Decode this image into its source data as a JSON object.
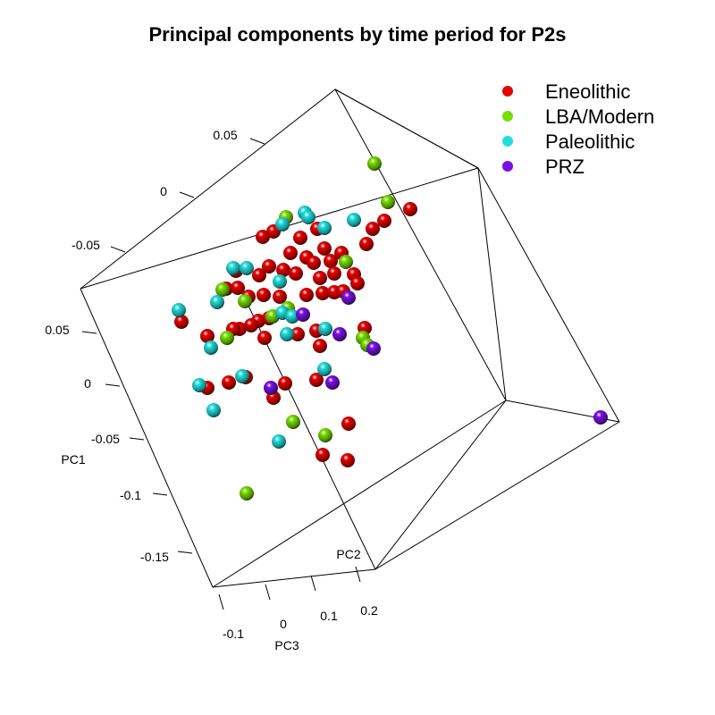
{
  "chart_data": {
    "type": "scatter",
    "title": "Principal components by time period for P2s",
    "axes": {
      "PC1": {
        "label": "PC1",
        "ticks": [
          "0.05",
          "0",
          "-0.05",
          "-0.1",
          "-0.15"
        ],
        "range": [
          -0.17,
          0.07
        ]
      },
      "PC2": {
        "label": "PC2",
        "ticks": [
          "0.05",
          "0",
          "-0.05"
        ]
      },
      "PC3": {
        "label": "PC3",
        "ticks": [
          "-0.1",
          "0",
          "0.1",
          "0.2"
        ]
      }
    },
    "legend_position": "top-right",
    "grid": false,
    "series": [
      {
        "name": "Eneolithic",
        "color": "#e60000",
        "points": [
          [
            430,
            247
          ],
          [
            459,
            234
          ],
          [
            417,
            256
          ],
          [
            294,
            265
          ],
          [
            306,
            259
          ],
          [
            336,
            266
          ],
          [
            355,
            256
          ],
          [
            410,
            273
          ],
          [
            363,
            278
          ],
          [
            325,
            283
          ],
          [
            343,
            288
          ],
          [
            351,
            294
          ],
          [
            370,
            292
          ],
          [
            382,
            283
          ],
          [
            317,
            302
          ],
          [
            301,
            298
          ],
          [
            264,
            303
          ],
          [
            290,
            308
          ],
          [
            331,
            306
          ],
          [
            358,
            311
          ],
          [
            374,
            306
          ],
          [
            396,
            307
          ],
          [
            253,
            323
          ],
          [
            266,
            322
          ],
          [
            278,
            332
          ],
          [
            295,
            330
          ],
          [
            313,
            332
          ],
          [
            343,
            330
          ],
          [
            361,
            328
          ],
          [
            374,
            327
          ],
          [
            400,
            317
          ],
          [
            289,
            359
          ],
          [
            301,
            356
          ],
          [
            281,
            364
          ],
          [
            268,
            368
          ],
          [
            261,
            368
          ],
          [
            203,
            360
          ],
          [
            232,
            376
          ],
          [
            296,
            378
          ],
          [
            333,
            374
          ],
          [
            354,
            370
          ],
          [
            384,
            326
          ],
          [
            408,
            367
          ],
          [
            256,
            428
          ],
          [
            275,
            422
          ],
          [
            232,
            434
          ],
          [
            306,
            445
          ],
          [
            319,
            429
          ],
          [
            354,
            425
          ],
          [
            390,
            474
          ],
          [
            361,
            509
          ],
          [
            389,
            515
          ],
          [
            358,
            387
          ]
        ]
      },
      {
        "name": "LBA/Modern",
        "color": "#77dd00",
        "points": [
          [
            419,
            183
          ],
          [
            434,
            226
          ],
          [
            320,
            243
          ],
          [
            387,
            293
          ],
          [
            249,
            324
          ],
          [
            274,
            337
          ],
          [
            305,
            354
          ],
          [
            322,
            345
          ],
          [
            254,
            378
          ],
          [
            406,
            378
          ],
          [
            411,
            386
          ],
          [
            328,
            472
          ],
          [
            364,
            487
          ],
          [
            276,
            552
          ]
        ]
      },
      {
        "name": "Paleolithic",
        "color": "#22dddd",
        "points": [
          [
            341,
            238
          ],
          [
            345,
            243
          ],
          [
            316,
            251
          ],
          [
            396,
            246
          ],
          [
            363,
            255
          ],
          [
            261,
            300
          ],
          [
            276,
            300
          ],
          [
            313,
            315
          ],
          [
            243,
            338
          ],
          [
            316,
            350
          ],
          [
            327,
            354
          ],
          [
            200,
            347
          ],
          [
            236,
            389
          ],
          [
            321,
            374
          ],
          [
            364,
            368
          ],
          [
            363,
            413
          ],
          [
            271,
            421
          ],
          [
            223,
            431
          ],
          [
            239,
            459
          ],
          [
            312,
            494
          ]
        ]
      },
      {
        "name": "PRZ",
        "color": "#7a10e6",
        "points": [
          [
            390,
            333
          ],
          [
            339,
            352
          ],
          [
            380,
            374
          ],
          [
            418,
            390
          ],
          [
            303,
            434
          ],
          [
            372,
            428
          ],
          [
            672,
            467
          ]
        ]
      }
    ]
  }
}
